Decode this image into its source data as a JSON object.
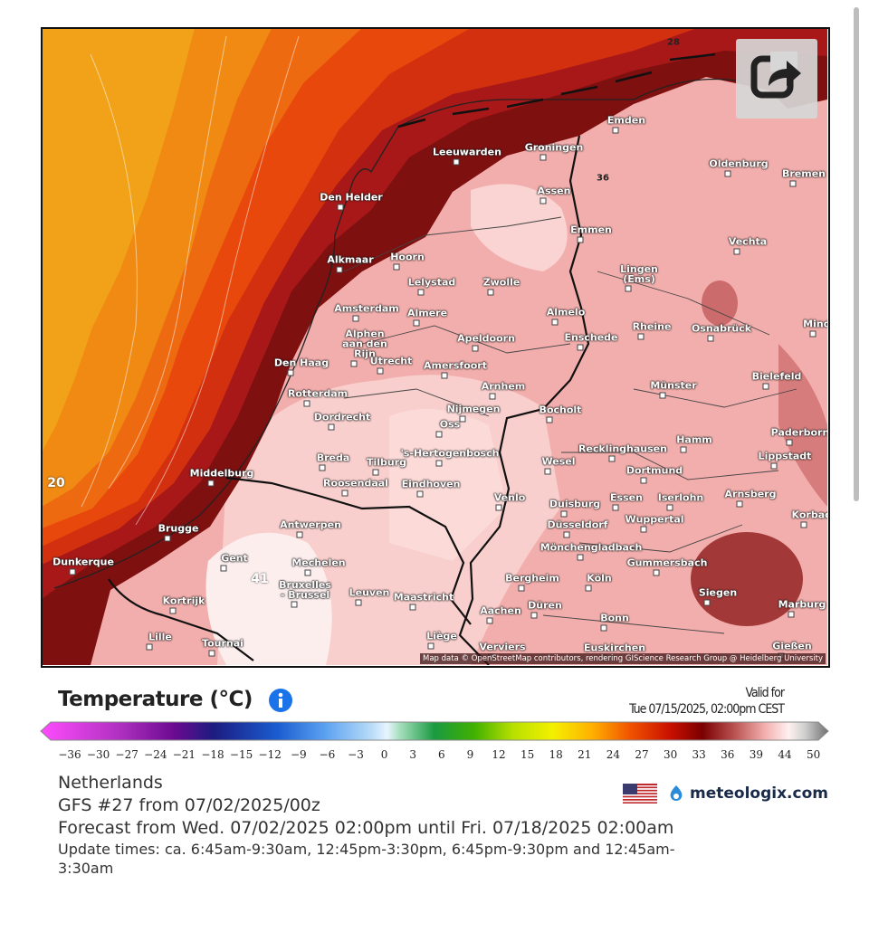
{
  "map": {
    "cities": [
      "Emden",
      "Groningen",
      "Leeuwarden",
      "Oldenburg",
      "Bremen",
      "Den Helder",
      "Assen",
      "Emmen",
      "Vechta",
      "Alkmaar",
      "Hoorn",
      "Lelystad",
      "Zwolle",
      "Lingen\n(Ems)",
      "Amsterdam",
      "Almere",
      "Almelo",
      "Rheine",
      "Osnabrück",
      "Minden",
      "Alphen\naan den\nRijn",
      "Apeldoorn",
      "Enschede",
      "Den Haag",
      "Utrecht",
      "Amersfoort",
      "Bielefeld",
      "Rotterdam",
      "Arnhem",
      "Münster",
      "Dordrecht",
      "Nijmegen",
      "Oss",
      "Bocholt",
      "Hamm",
      "Paderborn",
      "'s-Hertogenbosch",
      "Recklinghausen",
      "Lippstadt",
      "Breda",
      "Tilburg",
      "Wesel",
      "Dortmund",
      "Middelburg",
      "Roosendaal",
      "Eindhoven",
      "Venlo",
      "Duisburg",
      "Essen",
      "Iserlohn",
      "Arnsberg",
      "Antwerpen",
      "Düsseldorf",
      "Wuppertal",
      "Korbach",
      "Brugge",
      "Mönchengladbach",
      "Gummersbach",
      "Gent",
      "Dunkerque",
      "Mechelen",
      "Bergheim",
      "Köln",
      "Bruxelles\n- Brussel",
      "Leuven",
      "Maastricht",
      "Siegen",
      "Marburg",
      "Kortrijk",
      "Düren",
      "Aachen",
      "Bonn",
      "Lille",
      "Tournai",
      "Liège",
      "Verviers",
      "Euskirchen",
      "Gießen"
    ],
    "contour_labels": [
      "20",
      "41",
      "28",
      "36"
    ],
    "attribution": "Map data © OpenStreetMap contributors, rendering GIScience Research Group @ Heidelberg University"
  },
  "legend": {
    "title": "Temperature (°C)",
    "valid_for": "Valid for",
    "valid_time": "Tue 07/15/2025, 02:00pm CEST",
    "ticks": [
      "−36",
      "−30",
      "−27",
      "−24",
      "−21",
      "−18",
      "−15",
      "−12",
      "−9",
      "−6",
      "−3",
      "0",
      "3",
      "6",
      "9",
      "12",
      "15",
      "18",
      "21",
      "24",
      "27",
      "30",
      "33",
      "36",
      "39",
      "44",
      "50"
    ]
  },
  "info": {
    "region": "Netherlands",
    "model": "GFS #27 from 07/02/2025/00z",
    "forecast": "Forecast from Wed. 07/02/2025 02:00pm until Fri. 07/18/2025 02:00am",
    "update_times": "Update times: ca. 6:45am-9:30am, 12:45pm-3:30pm, 6:45pm-9:30pm and 12:45am-3:30am",
    "brand": "meteologix.com"
  }
}
